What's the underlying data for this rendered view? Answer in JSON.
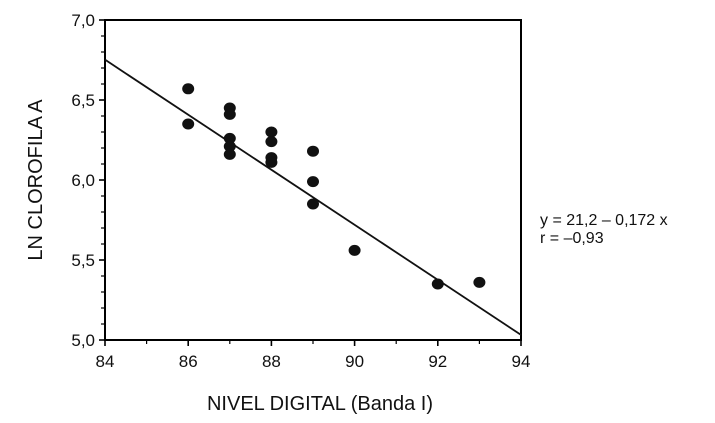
{
  "chart_data": {
    "type": "scatter",
    "title": "",
    "xlabel": "NIVEL DIGITAL (Banda I)",
    "ylabel": "LN CLOROFILA A",
    "xlim": [
      84,
      94
    ],
    "ylim": [
      5.0,
      7.0
    ],
    "xticks": [
      84,
      86,
      88,
      90,
      92,
      94
    ],
    "xtick_labels": [
      "84",
      "86",
      "88",
      "90",
      "92",
      "94"
    ],
    "yticks": [
      5.0,
      5.5,
      6.0,
      6.5,
      7.0
    ],
    "ytick_labels": [
      "5,0",
      "5,5",
      "6,0",
      "6,5",
      "7,0"
    ],
    "grid": false,
    "legend": "none",
    "points": [
      {
        "x": 86,
        "y": 6.57
      },
      {
        "x": 86,
        "y": 6.35
      },
      {
        "x": 87,
        "y": 6.45
      },
      {
        "x": 87,
        "y": 6.41
      },
      {
        "x": 87,
        "y": 6.26
      },
      {
        "x": 87,
        "y": 6.21
      },
      {
        "x": 87,
        "y": 6.16
      },
      {
        "x": 88,
        "y": 6.3
      },
      {
        "x": 88,
        "y": 6.24
      },
      {
        "x": 88,
        "y": 6.14
      },
      {
        "x": 88,
        "y": 6.11
      },
      {
        "x": 89,
        "y": 6.18
      },
      {
        "x": 89,
        "y": 5.99
      },
      {
        "x": 89,
        "y": 5.85
      },
      {
        "x": 90,
        "y": 5.56
      },
      {
        "x": 92,
        "y": 5.35
      },
      {
        "x": 93,
        "y": 5.36
      }
    ],
    "fit_line": {
      "intercept": 21.2,
      "slope": -0.172,
      "x_range": [
        84,
        94
      ]
    },
    "annotations": [
      "y = 21,2 – 0,172 x",
      "r = –0,93"
    ]
  },
  "colors": {
    "ink": "#111111",
    "background": "#ffffff"
  }
}
